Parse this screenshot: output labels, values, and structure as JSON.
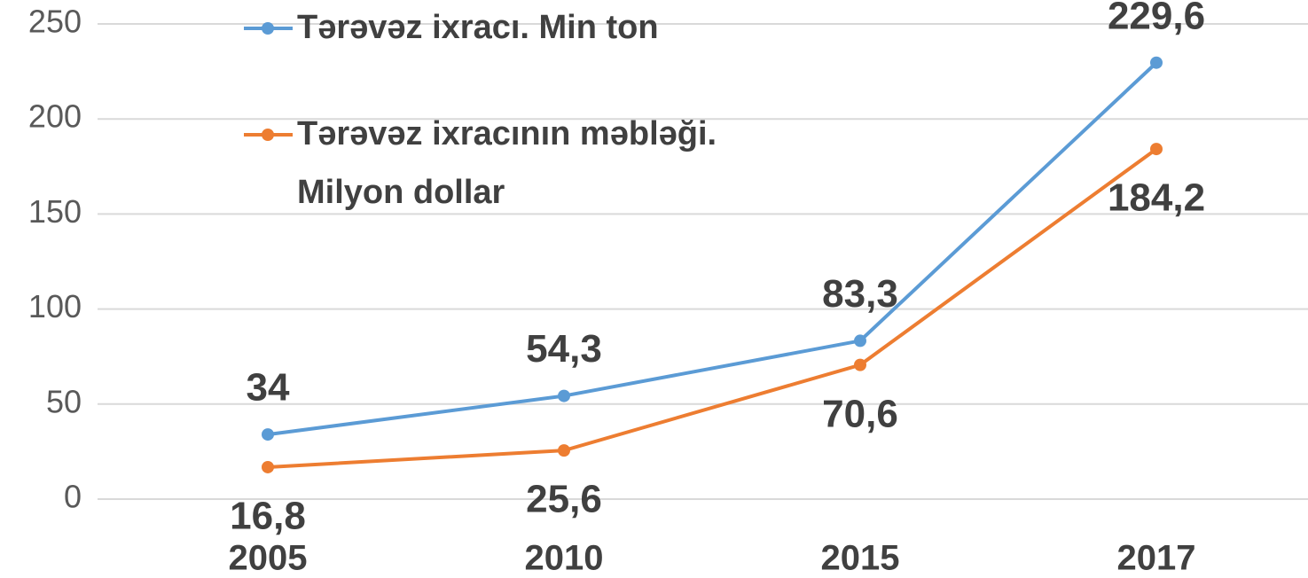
{
  "chart_data": {
    "type": "line",
    "categories": [
      "2005",
      "2010",
      "2015",
      "2017"
    ],
    "series": [
      {
        "name": "Tərəvəz ixracı. Min ton",
        "color": "#5b9bd5",
        "values": [
          34,
          54.3,
          83.3,
          229.6
        ],
        "value_labels": [
          "34",
          "54,3",
          "83,3",
          "229,6"
        ]
      },
      {
        "name": "Tərəvəz ixracının məbləği. Milyon dollar",
        "color": "#ed7d31",
        "values": [
          16.8,
          25.6,
          70.6,
          184.2
        ],
        "value_labels": [
          "16,8",
          "25,6",
          "70,6",
          "184,2"
        ]
      }
    ],
    "ylim": [
      0,
      250
    ],
    "yticks": [
      0,
      50,
      100,
      150,
      200,
      250
    ],
    "grid": true,
    "legend": "top-left"
  }
}
